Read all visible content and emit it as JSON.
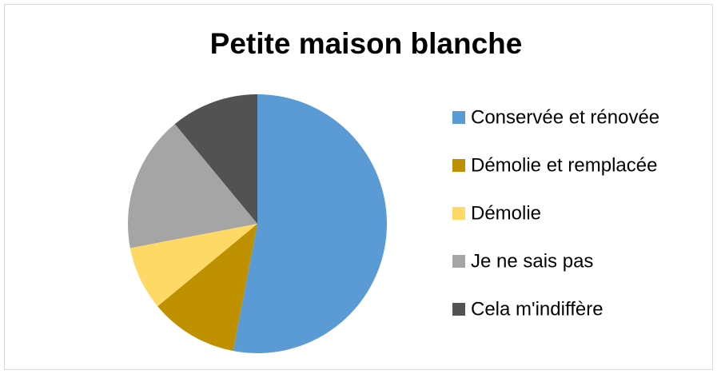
{
  "chart_data": {
    "type": "pie",
    "title": "Petite maison blanche",
    "categories": [
      "Conservée et rénovée",
      "Démolie et remplacée",
      "Démolie",
      "Je ne sais pas",
      "Cela m'indiffère"
    ],
    "values": [
      53,
      11,
      8,
      17,
      11
    ],
    "colors": [
      "#5b9bd5",
      "#bf9000",
      "#ffd966",
      "#a5a5a5",
      "#525252"
    ],
    "legend": "right"
  }
}
